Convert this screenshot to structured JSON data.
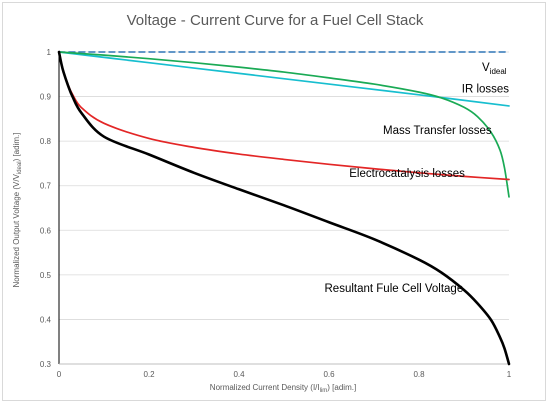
{
  "chart_data": {
    "type": "line",
    "title": "Voltage - Current Curve for a Fuel Cell  Stack",
    "xlabel": {
      "main": "Normalized Current Density (I/I",
      "sub": "lim",
      "tail": ") [adim.]"
    },
    "ylabel": {
      "main": "Normalized Output Voltage (V/V",
      "sub": "ideal",
      "tail": ") [adim.]"
    },
    "xlim": [
      0,
      1
    ],
    "ylim": [
      0.3,
      1.0
    ],
    "x_ticks": [
      "0",
      "0.2",
      "0.4",
      "0.6",
      "0.8",
      "1"
    ],
    "y_ticks": [
      "0.3",
      "0.4",
      "0.5",
      "0.6",
      "0.7",
      "0.8",
      "0.9",
      "1"
    ],
    "grid": "horizontal",
    "legend": "none",
    "series": [
      {
        "name": "V_ideal",
        "color": "#2e75b6",
        "style": "dashed",
        "points": [
          [
            0,
            1.0
          ],
          [
            1,
            1.0
          ]
        ]
      },
      {
        "name": "IR losses",
        "color": "#17becf",
        "style": "solid",
        "points": [
          [
            0,
            1.0
          ],
          [
            0.2,
            0.976
          ],
          [
            0.4,
            0.952
          ],
          [
            0.6,
            0.928
          ],
          [
            0.8,
            0.904
          ],
          [
            1.0,
            0.879
          ]
        ]
      },
      {
        "name": "Mass Transfer losses",
        "color": "#1aaa55",
        "style": "solid",
        "points": [
          [
            0,
            1.0
          ],
          [
            0.1,
            0.993
          ],
          [
            0.2,
            0.985
          ],
          [
            0.3,
            0.976
          ],
          [
            0.4,
            0.966
          ],
          [
            0.5,
            0.955
          ],
          [
            0.6,
            0.942
          ],
          [
            0.7,
            0.928
          ],
          [
            0.8,
            0.91
          ],
          [
            0.85,
            0.897
          ],
          [
            0.9,
            0.876
          ],
          [
            0.93,
            0.855
          ],
          [
            0.96,
            0.82
          ],
          [
            0.98,
            0.78
          ],
          [
            0.99,
            0.74
          ],
          [
            1.0,
            0.675
          ]
        ]
      },
      {
        "name": "Electrocatalysis losses",
        "color": "#e32626",
        "style": "solid",
        "points": [
          [
            0,
            1.0
          ],
          [
            0.005,
            0.975
          ],
          [
            0.01,
            0.955
          ],
          [
            0.02,
            0.927
          ],
          [
            0.03,
            0.905
          ],
          [
            0.05,
            0.875
          ],
          [
            0.1,
            0.84
          ],
          [
            0.2,
            0.806
          ],
          [
            0.3,
            0.786
          ],
          [
            0.4,
            0.771
          ],
          [
            0.5,
            0.759
          ],
          [
            0.6,
            0.748
          ],
          [
            0.7,
            0.738
          ],
          [
            0.8,
            0.729
          ],
          [
            0.9,
            0.721
          ],
          [
            1.0,
            0.714
          ]
        ]
      },
      {
        "name": "Resultant Fule Cell Voltage",
        "color": "#000000",
        "style": "solid",
        "points": [
          [
            0,
            1.0
          ],
          [
            0.005,
            0.975
          ],
          [
            0.01,
            0.955
          ],
          [
            0.02,
            0.925
          ],
          [
            0.03,
            0.9
          ],
          [
            0.05,
            0.863
          ],
          [
            0.1,
            0.81
          ],
          [
            0.2,
            0.77
          ],
          [
            0.3,
            0.729
          ],
          [
            0.4,
            0.692
          ],
          [
            0.5,
            0.656
          ],
          [
            0.6,
            0.618
          ],
          [
            0.7,
            0.58
          ],
          [
            0.8,
            0.534
          ],
          [
            0.85,
            0.505
          ],
          [
            0.9,
            0.466
          ],
          [
            0.93,
            0.436
          ],
          [
            0.96,
            0.399
          ],
          [
            0.98,
            0.36
          ],
          [
            0.99,
            0.335
          ],
          [
            1.0,
            0.3
          ]
        ]
      }
    ],
    "annotations": [
      {
        "main": "V",
        "sub": "ideal",
        "x": 0.94,
        "y": 0.957,
        "series": "V_ideal"
      },
      {
        "main": "IR losses",
        "x": 0.895,
        "y": 0.909,
        "series": "IR losses"
      },
      {
        "main": "Mass Transfer losses",
        "x": 0.72,
        "y": 0.816,
        "series": "Mass Transfer losses"
      },
      {
        "main": "Electrocatalysis losses",
        "x": 0.645,
        "y": 0.72,
        "series": "Electrocatalysis losses"
      },
      {
        "main": "Resultant Fule Cell Voltage",
        "x": 0.59,
        "y": 0.462,
        "series": "Resultant Fule Cell Voltage"
      }
    ]
  }
}
